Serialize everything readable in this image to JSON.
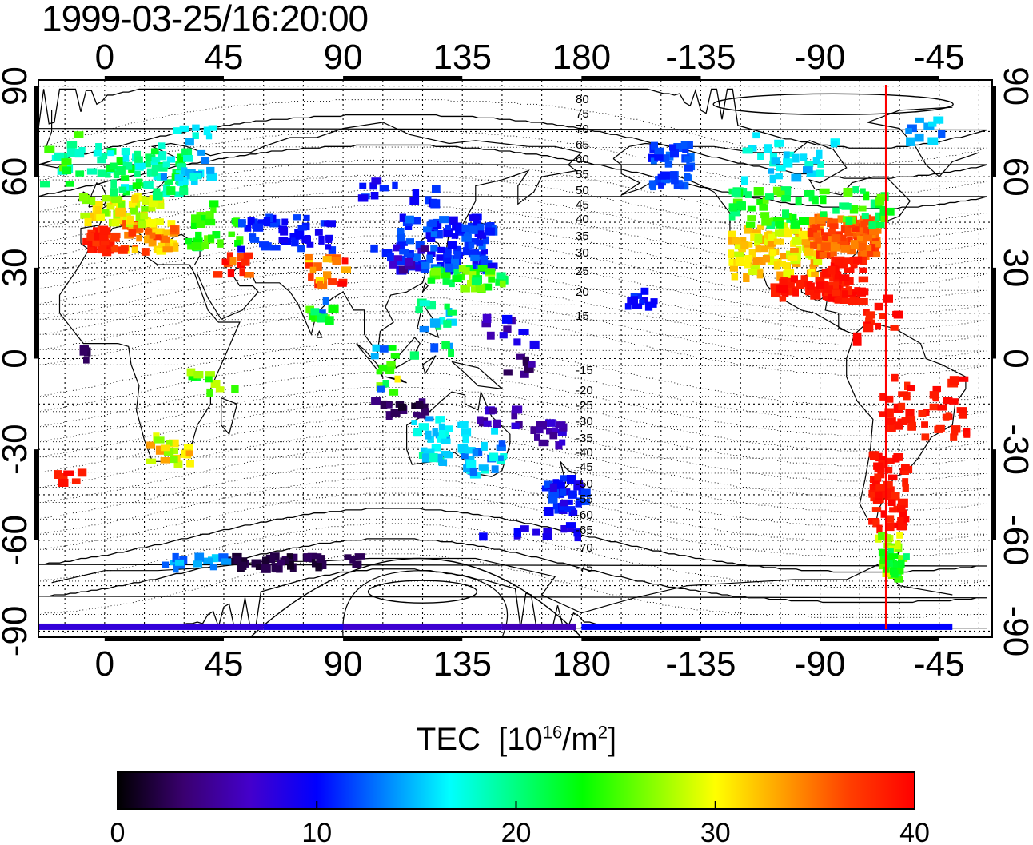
{
  "timestamp": "1999-03-25/16:20:00",
  "map": {
    "lon_ticks": [
      "0",
      "45",
      "90",
      "135",
      "180",
      "-135",
      "-90",
      "-45"
    ],
    "lat_ticks": [
      "90",
      "60",
      "30",
      "0",
      "-30",
      "-60",
      "-90"
    ],
    "magnetic_latitude_labels": [
      "80",
      "75",
      "70",
      "65",
      "60",
      "55",
      "50",
      "45",
      "40",
      "35",
      "30",
      "25",
      "20",
      "15",
      "-15",
      "-20",
      "-25",
      "-30",
      "-35",
      "-40",
      "-45",
      "-50",
      "-55",
      "-60",
      "-65",
      "-70",
      "-75"
    ],
    "marker_longitude": -65,
    "marker_color": "#ff0000"
  },
  "colorbar": {
    "title_text": "TEC",
    "unit_prefix": "[10",
    "unit_exp": "16",
    "unit_mid": "/m",
    "unit_exp2": "2",
    "unit_suffix": "]",
    "ticks": [
      "0",
      "10",
      "20",
      "30",
      "40"
    ],
    "range": [
      0,
      40
    ],
    "stops": [
      "#000000",
      "#3a0070",
      "#4400cc",
      "#0000ff",
      "#0080ff",
      "#00ffff",
      "#00ff80",
      "#00ff00",
      "#80ff00",
      "#ffff00",
      "#ffa000",
      "#ff4000",
      "#ff0000"
    ]
  }
}
